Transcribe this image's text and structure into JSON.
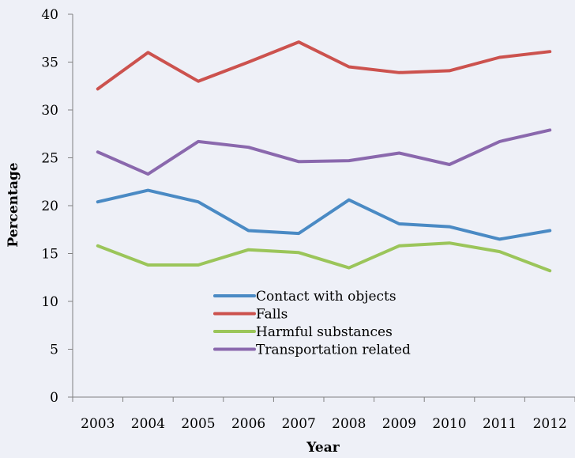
{
  "chart_data": {
    "type": "line",
    "title": "",
    "xlabel": "Year",
    "ylabel": "Percentage",
    "ylim": [
      0,
      40
    ],
    "yticks": [
      0,
      5,
      10,
      15,
      20,
      25,
      30,
      35,
      40
    ],
    "grid": false,
    "legend_position": "bottom-center",
    "categories": [
      "2003",
      "2004",
      "2005",
      "2006",
      "2007",
      "2008",
      "2009",
      "2010",
      "2011",
      "2012"
    ],
    "series": [
      {
        "name": "Contact with objects",
        "color": "#4a8ac4",
        "values": [
          20.4,
          21.6,
          20.4,
          17.4,
          17.1,
          20.6,
          18.1,
          17.8,
          16.5,
          17.4
        ]
      },
      {
        "name": "Falls",
        "color": "#cc524e",
        "values": [
          32.2,
          36.0,
          33.0,
          35.0,
          37.1,
          34.5,
          33.9,
          34.1,
          35.5,
          36.1
        ]
      },
      {
        "name": "Harmful substances",
        "color": "#9bc55a",
        "values": [
          15.8,
          13.8,
          13.8,
          15.4,
          15.1,
          13.5,
          15.8,
          16.1,
          15.2,
          13.2
        ]
      },
      {
        "name": "Transportation related",
        "color": "#8a68ad",
        "values": [
          25.6,
          23.3,
          26.7,
          26.1,
          24.6,
          24.7,
          25.5,
          24.3,
          26.7,
          27.9
        ]
      }
    ]
  }
}
